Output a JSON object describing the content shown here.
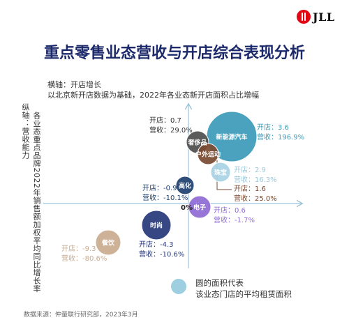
{
  "logo": {
    "text": "JLL"
  },
  "title": "重点零售业态营收与开店综合表现分析",
  "x_axis_label": {
    "line1": "横轴：开店增长",
    "line2": "以北京新开店数据为基础，2022年各业态新开店面积占比增幅"
  },
  "y_axis_label": {
    "line1": "纵轴：营收能力",
    "line2": "各业态重点品牌2022年销售额加权平均同比增长率"
  },
  "zero_label": "0%",
  "legend": {
    "line1": "圆的面积代表",
    "line2": "该业态门店的平均租赁面积",
    "color": "#9ecfe0"
  },
  "source": "数据来源：仲量联行研究部，2023年3月",
  "axis_color": "#9cc4dc",
  "chart_data": {
    "type": "bubble",
    "title": "重点零售业态营收与开店综合表现分析",
    "xlabel": "开店增长",
    "ylabel": "营收能力",
    "series": [
      {
        "name": "新能源汽车",
        "x": 3.6,
        "y": 196.9,
        "color": "#3b9ab8",
        "label_open": "开店：3.6",
        "label_rev": "营收：196.9%"
      },
      {
        "name": "奢侈品",
        "x": 0.7,
        "y": 29.0,
        "color": "#4d4d4d",
        "label_open": "开店：0.7",
        "label_rev": "营收：29.0%"
      },
      {
        "name": "户外运动",
        "x": 1.6,
        "y": 25.0,
        "color": "#7a4a30",
        "label_open": "开店：1.6",
        "label_rev": "营收：25.0%"
      },
      {
        "name": "珠宝",
        "x": 2.9,
        "y": 16.3,
        "color": "#a8d3e4",
        "label_open": "开店：2.9",
        "label_rev": "营收：16.3%"
      },
      {
        "name": "高化",
        "x": -0.9,
        "y": -10.1,
        "color": "#1d3f6e",
        "label_open": "开店：-0.9",
        "label_rev": "营收：-10.1%"
      },
      {
        "name": "电子",
        "x": 0.6,
        "y": -1.7,
        "color": "#8e6ad4",
        "label_open": "开店：0.6",
        "label_rev": "营收：-1.7%"
      },
      {
        "name": "时尚",
        "x": -4.3,
        "y": -10.6,
        "color": "#26377a",
        "label_open": "开店：-4.3",
        "label_rev": "营收：-10.6%"
      },
      {
        "name": "餐饮",
        "x": -9.3,
        "y": -80.6,
        "color": "#c9ab8f",
        "label_open": "开店：-9.3",
        "label_rev": "营收：-80.6%"
      }
    ]
  }
}
